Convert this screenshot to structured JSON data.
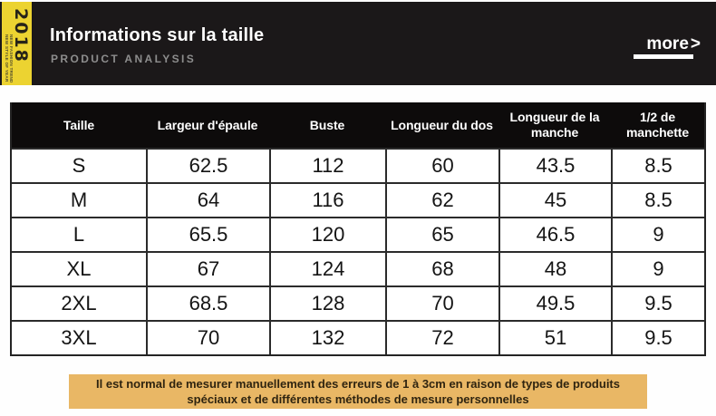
{
  "header": {
    "year": "2018",
    "year_caption_line1": "NEW FASHION TREND",
    "year_caption_line2": "NEW STYLE OF YEAR",
    "title": "Informations sur la taille",
    "subtitle": "PRODUCT ANALYSIS",
    "more_label": "more",
    "more_arrow": ">"
  },
  "size_table": {
    "columns": [
      "Taille",
      "Largeur d'épaule",
      "Buste",
      "Longueur du dos",
      "Longueur de la manche",
      "1/2 de manchette"
    ],
    "rows": [
      [
        "S",
        "62.5",
        "112",
        "60",
        "43.5",
        "8.5"
      ],
      [
        "M",
        "64",
        "116",
        "62",
        "45",
        "8.5"
      ],
      [
        "L",
        "65.5",
        "120",
        "65",
        "46.5",
        "9"
      ],
      [
        "XL",
        "67",
        "124",
        "68",
        "48",
        "9"
      ],
      [
        "2XL",
        "68.5",
        "128",
        "70",
        "49.5",
        "9.5"
      ],
      [
        "3XL",
        "70",
        "132",
        "72",
        "51",
        "9.5"
      ]
    ]
  },
  "note": {
    "line1": "Il est normal de mesurer manuellement des erreurs de 1 à 3cm en raison de types de produits",
    "line2": "spéciaux et de différentes méthodes de mesure personnelles"
  },
  "colors": {
    "banner_bg": "#1b1819",
    "ribbon_yellow": "#ecd331",
    "table_header_bg": "#0d0b0b",
    "grid_line": "#2b2b2b",
    "note_bg": "#e9b765",
    "subtitle_gray": "#8d8d8d"
  }
}
